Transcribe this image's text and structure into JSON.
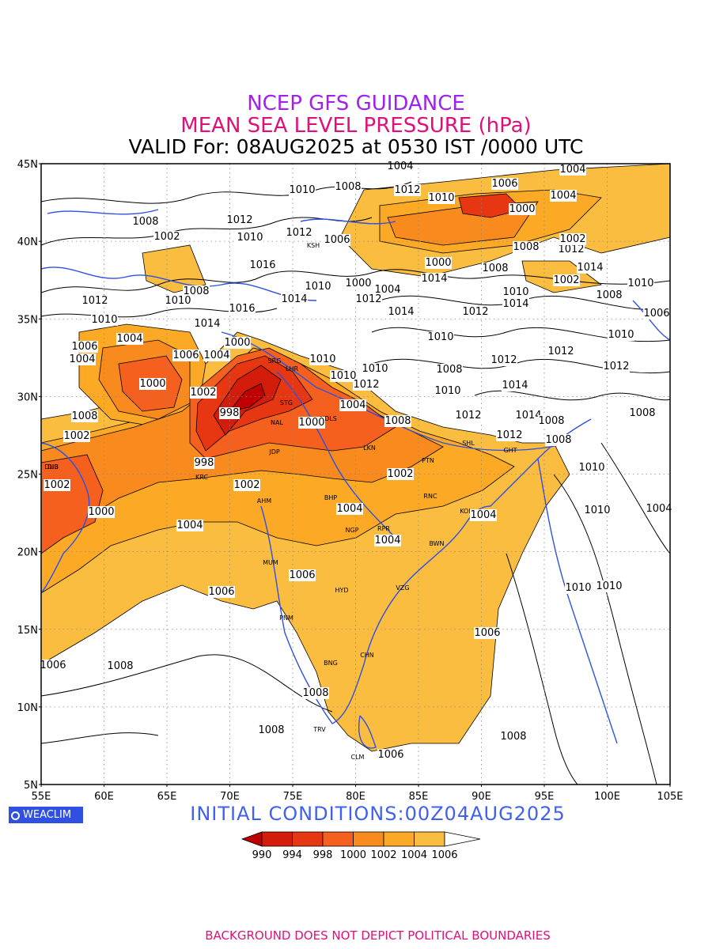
{
  "title": {
    "line1": "NCEP GFS GUIDANCE",
    "line2": "MEAN SEA LEVEL PRESSURE (hPa)",
    "line3": "VALID For: 08AUG2025 at 0530 IST /0000 UTC"
  },
  "axes": {
    "lat_labels": [
      "45N",
      "40N",
      "35N",
      "30N",
      "25N",
      "20N",
      "15N",
      "10N",
      "5N"
    ],
    "lon_labels": [
      "55E",
      "60E",
      "65E",
      "70E",
      "75E",
      "80E",
      "85E",
      "90E",
      "95E",
      "100E",
      "105E"
    ],
    "lat_range": [
      5,
      45
    ],
    "lon_range": [
      55,
      105
    ]
  },
  "colorbar": {
    "levels": [
      "990",
      "994",
      "998",
      "1000",
      "1002",
      "1004",
      "1006"
    ],
    "colors": [
      "#c00000",
      "#d41c0a",
      "#e63712",
      "#f5601e",
      "#f98a1e",
      "#fcaa26",
      "#fbbd40",
      "#ffffff"
    ]
  },
  "isobar_labels": [
    "1004",
    "1010",
    "1008",
    "1012",
    "1006",
    "1002",
    "1000",
    "1014",
    "1016",
    "998"
  ],
  "cities": [
    "SRG",
    "LHR",
    "STG",
    "NDLS",
    "JDP",
    "NAL",
    "LKN",
    "PTN",
    "KRC",
    "AHM",
    "BHP",
    "RNC",
    "KOL",
    "NGP",
    "RPR",
    "BWN",
    "MUM",
    "HYD",
    "VZG",
    "PNM",
    "CHN",
    "BNG",
    "TRV",
    "CLM",
    "GHT",
    "SHL",
    "DIB",
    "DUB",
    "RNG",
    "KSH"
  ],
  "logo": "WEACLIM",
  "initial_conditions": "INITIAL CONDITIONS:00Z04AUG2025",
  "footer": "BACKGROUND DOES NOT DEPICT POLITICAL BOUNDARIES"
}
